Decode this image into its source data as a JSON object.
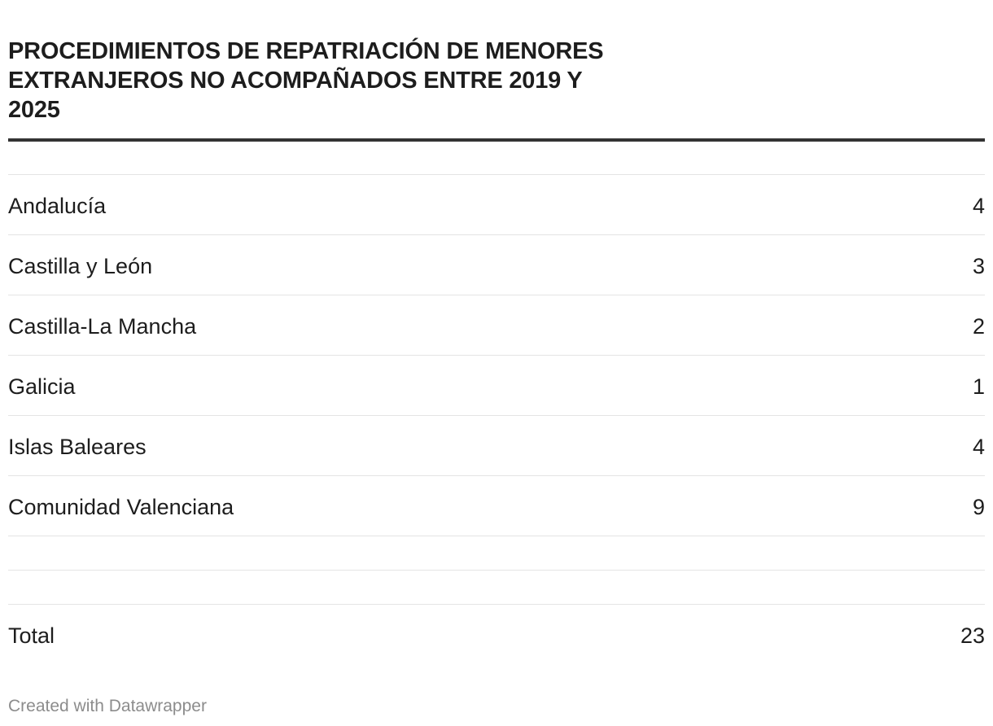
{
  "title": "PROCEDIMIENTOS DE REPATRIACIÓN DE MENORES EXTRANJEROS NO ACOMPAÑADOS ENTRE 2019 Y 2025",
  "chart_data": {
    "type": "table",
    "title": "PROCEDIMIENTOS DE REPATRIACIÓN DE MENORES EXTRANJEROS NO ACOMPAÑADOS ENTRE 2019 Y 2025",
    "rows": [
      {
        "label": "Andalucía",
        "value": "4"
      },
      {
        "label": "Castilla y León",
        "value": "3"
      },
      {
        "label": "Castilla-La Mancha",
        "value": "2"
      },
      {
        "label": "Galicia",
        "value": "1"
      },
      {
        "label": "Islas Baleares",
        "value": "4"
      },
      {
        "label": "Comunidad Valenciana",
        "value": "9"
      },
      {
        "label": "",
        "value": ""
      },
      {
        "label": "",
        "value": ""
      },
      {
        "label": "Total",
        "value": "23"
      }
    ]
  },
  "footer": {
    "credit": "Created with Datawrapper"
  }
}
